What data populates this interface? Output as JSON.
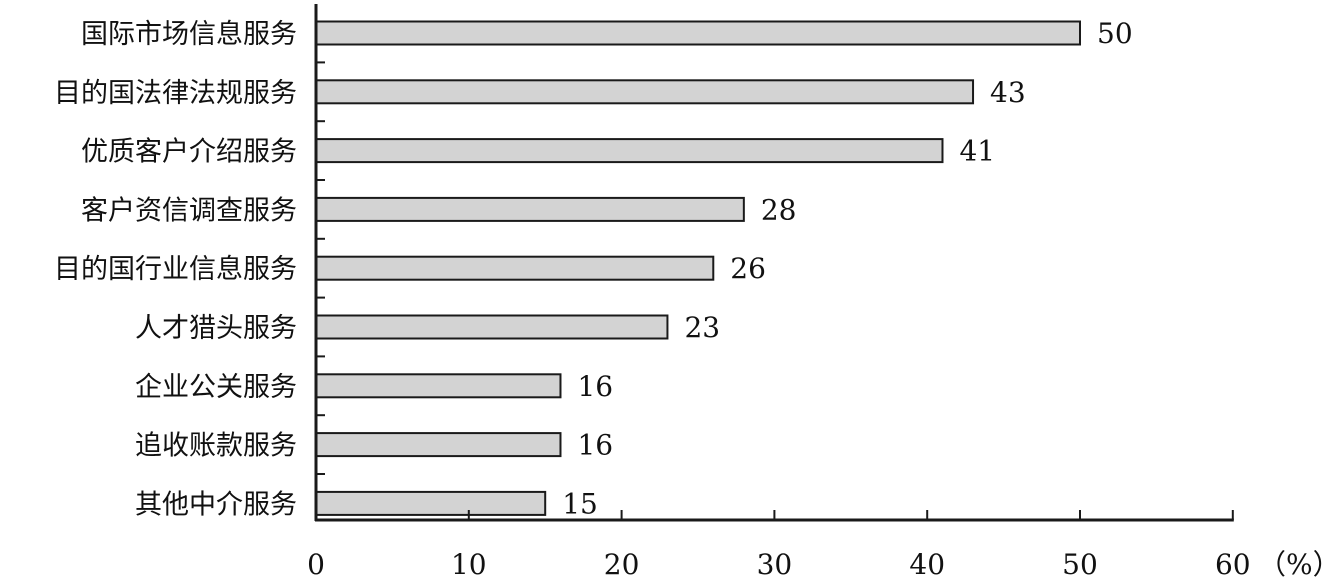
{
  "chart_data": {
    "type": "bar",
    "orientation": "horizontal",
    "categories": [
      "国际市场信息服务",
      "目的国法律法规服务",
      "优质客户介绍服务",
      "客户资信调查服务",
      "目的国行业信息服务",
      "人才猎头服务",
      "企业公关服务",
      "追收账款服务",
      "其他中介服务"
    ],
    "values": [
      50,
      43,
      41,
      28,
      26,
      23,
      16,
      16,
      15
    ],
    "value_labels": [
      "50",
      "43",
      "41",
      "28",
      "26",
      "23",
      "16",
      "16",
      "15"
    ],
    "xlim": [
      0,
      60
    ],
    "x_ticks": [
      "0",
      "10",
      "20",
      "30",
      "40",
      "50",
      "60"
    ],
    "x_unit": "（%）",
    "title": "",
    "xlabel": "",
    "ylabel": "",
    "grid": false,
    "legend": "none",
    "colors": {
      "bar_fill": "#d3d3d3",
      "bar_stroke": "#1a1a1a",
      "axis": "#1a1a1a",
      "text": "#111111",
      "background": "#ffffff"
    }
  }
}
